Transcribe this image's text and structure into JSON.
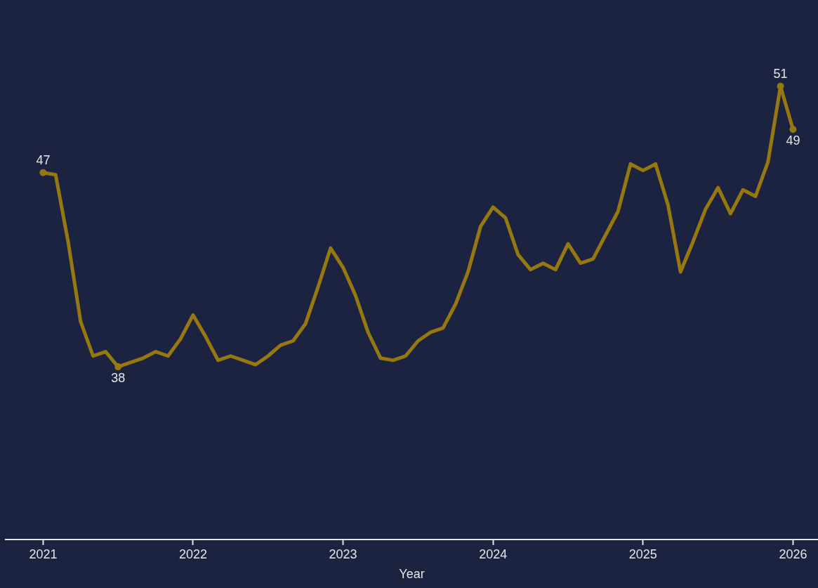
{
  "chart_data": {
    "type": "line",
    "xlabel": "Year",
    "x": [
      "2021-01",
      "2021-02",
      "2021-03",
      "2021-04",
      "2021-05",
      "2021-06",
      "2021-07",
      "2021-08",
      "2021-09",
      "2021-10",
      "2021-11",
      "2021-12",
      "2022-01",
      "2022-02",
      "2022-03",
      "2022-04",
      "2022-05",
      "2022-06",
      "2022-07",
      "2022-08",
      "2022-09",
      "2022-10",
      "2022-11",
      "2022-12",
      "2023-01",
      "2023-02",
      "2023-03",
      "2023-04",
      "2023-05",
      "2023-06",
      "2023-07",
      "2023-08",
      "2023-09",
      "2023-10",
      "2023-11",
      "2023-12",
      "2024-01",
      "2024-02",
      "2024-03",
      "2024-04",
      "2024-05",
      "2024-06",
      "2024-07",
      "2024-08",
      "2024-09",
      "2024-10",
      "2024-11",
      "2024-12",
      "2025-01",
      "2025-02",
      "2025-03",
      "2025-04",
      "2025-05",
      "2025-06",
      "2025-07",
      "2025-08",
      "2025-09",
      "2025-10",
      "2025-11",
      "2025-12",
      "2026-01"
    ],
    "values": [
      47,
      46.9,
      43.8,
      40.1,
      38.5,
      38.7,
      38,
      38.2,
      38.4,
      38.7,
      38.5,
      39.3,
      40.4,
      39.4,
      38.3,
      38.5,
      38.3,
      38.1,
      38.5,
      39.0,
      39.2,
      40.0,
      41.7,
      43.5,
      42.6,
      41.3,
      39.6,
      38.4,
      38.3,
      38.5,
      39.2,
      39.6,
      39.8,
      40.9,
      42.4,
      44.5,
      45.4,
      44.9,
      43.2,
      42.5,
      42.8,
      42.5,
      43.7,
      42.8,
      43.0,
      44.1,
      45.2,
      47.4,
      47.1,
      47.4,
      45.5,
      42.4,
      43.8,
      45.3,
      46.3,
      45.1,
      46.2,
      45.9,
      47.5,
      51,
      49
    ],
    "value_labels": [
      "47",
      null,
      null,
      null,
      null,
      null,
      "38",
      null,
      null,
      null,
      null,
      null,
      null,
      null,
      null,
      null,
      null,
      null,
      null,
      null,
      null,
      null,
      null,
      null,
      null,
      null,
      null,
      null,
      null,
      null,
      null,
      null,
      null,
      null,
      null,
      null,
      null,
      null,
      null,
      null,
      null,
      null,
      null,
      null,
      null,
      null,
      null,
      null,
      null,
      null,
      null,
      null,
      null,
      null,
      null,
      null,
      null,
      null,
      null,
      "51",
      "49"
    ],
    "color": "#967810",
    "marker": "none",
    "line_style": "solid",
    "xlim": [
      "2020-10",
      "2026-03"
    ],
    "tick_labels": "x",
    "xticks": [
      {
        "value": "2021",
        "label": "2021"
      },
      {
        "value": "2022",
        "label": "2022"
      },
      {
        "value": "2023",
        "label": "2023"
      },
      {
        "value": "2024",
        "label": "2024"
      },
      {
        "value": "2025",
        "label": "2025"
      },
      {
        "value": "2026",
        "label": "2026"
      }
    ]
  }
}
